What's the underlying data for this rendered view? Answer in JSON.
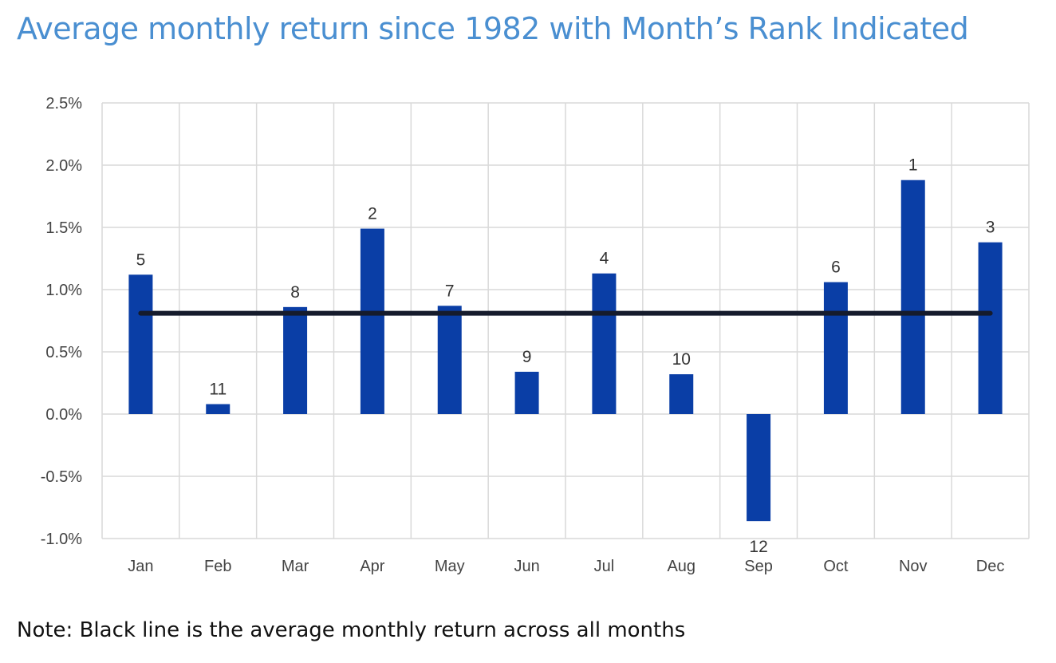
{
  "title": "Average monthly return since 1982 with Month’s Rank Indicated",
  "note": "Note: Black line is the average monthly return across all months",
  "chart_data": {
    "type": "bar",
    "categories": [
      "Jan",
      "Feb",
      "Mar",
      "Apr",
      "May",
      "Jun",
      "Jul",
      "Aug",
      "Sep",
      "Oct",
      "Nov",
      "Dec"
    ],
    "values": [
      1.12,
      0.08,
      0.86,
      1.49,
      0.87,
      0.34,
      1.13,
      0.32,
      -0.86,
      1.06,
      1.88,
      1.38
    ],
    "rank_labels": [
      "5",
      "11",
      "8",
      "2",
      "7",
      "9",
      "4",
      "10",
      "12",
      "6",
      "1",
      "3"
    ],
    "average_line": 0.81,
    "ylim": [
      -1.0,
      2.5
    ],
    "yticks": [
      2.5,
      2.0,
      1.5,
      1.0,
      0.5,
      0.0,
      -0.5,
      -1.0
    ],
    "ytick_labels": [
      "2.5%",
      "2.0%",
      "1.5%",
      "1.0%",
      "0.5%",
      "0.0%",
      "-0.5%",
      "-1.0%"
    ],
    "grid": true,
    "colors": {
      "bar": "#0a3ea6",
      "average_line": "#151b2c",
      "grid": "#d9d9d9",
      "title": "#4a8fd1"
    }
  }
}
